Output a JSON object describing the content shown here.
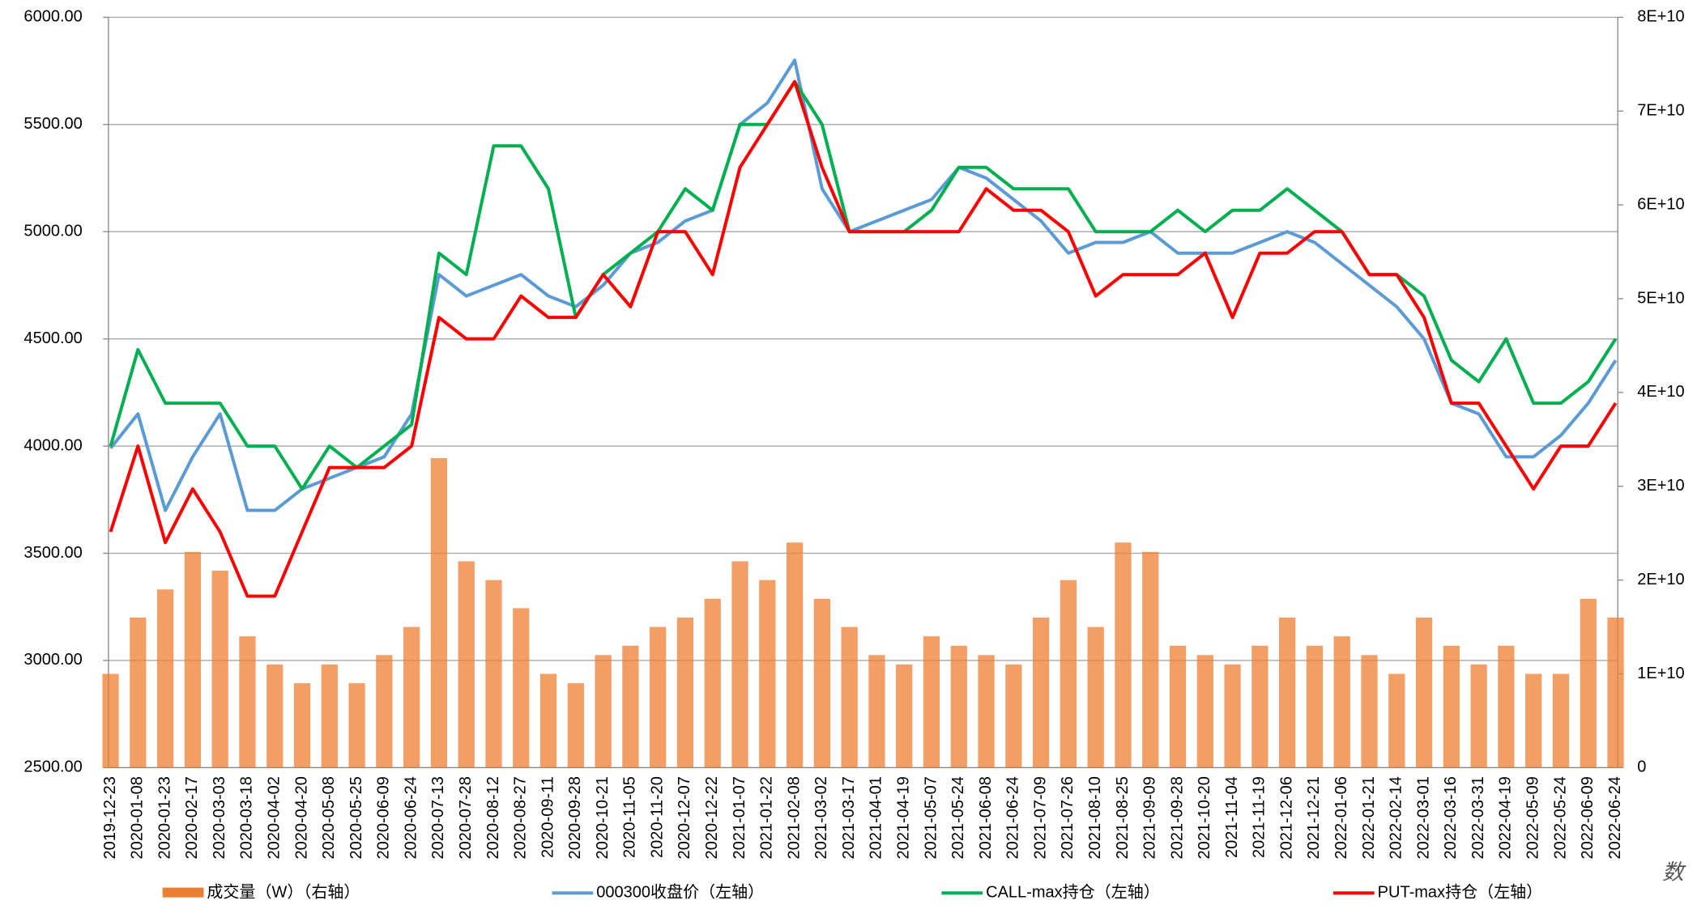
{
  "chart_data": {
    "type": "bar-line",
    "categories": [
      "2019-12-23",
      "2020-01-08",
      "2020-01-23",
      "2020-02-17",
      "2020-03-03",
      "2020-03-18",
      "2020-04-02",
      "2020-04-20",
      "2020-05-08",
      "2020-05-25",
      "2020-06-09",
      "2020-06-24",
      "2020-07-13",
      "2020-07-28",
      "2020-08-12",
      "2020-08-27",
      "2020-09-11",
      "2020-09-28",
      "2020-10-21",
      "2020-11-05",
      "2020-11-20",
      "2020-12-07",
      "2020-12-22",
      "2021-01-07",
      "2021-01-22",
      "2021-02-08",
      "2021-03-02",
      "2021-03-17",
      "2021-04-01",
      "2021-04-19",
      "2021-05-07",
      "2021-05-24",
      "2021-06-08",
      "2021-06-24",
      "2021-07-09",
      "2021-07-26",
      "2021-08-10",
      "2021-08-25",
      "2021-09-09",
      "2021-09-28",
      "2021-10-20",
      "2021-11-04",
      "2021-11-19",
      "2021-12-06",
      "2021-12-21",
      "2022-01-06",
      "2022-01-21",
      "2022-02-14",
      "2022-03-01",
      "2022-03-16",
      "2022-03-31",
      "2022-04-19",
      "2022-05-09",
      "2022-05-24",
      "2022-06-09",
      "2022-06-24"
    ],
    "series": [
      {
        "name": "成交量（W）（右轴）",
        "color": "#ED7D31",
        "axis": "y2",
        "kind": "bar",
        "values": [
          10000000000.0,
          16000000000.0,
          19000000000.0,
          23000000000.0,
          21000000000.0,
          14000000000.0,
          11000000000.0,
          9000000000.0,
          11000000000.0,
          9000000000.0,
          12000000000.0,
          15000000000.0,
          33000000000.0,
          22000000000.0,
          20000000000.0,
          17000000000.0,
          10000000000.0,
          9000000000.0,
          12000000000.0,
          13000000000.0,
          15000000000.0,
          16000000000.0,
          18000000000.0,
          22000000000.0,
          20000000000.0,
          24000000000.0,
          18000000000.0,
          15000000000.0,
          12000000000.0,
          11000000000.0,
          14000000000.0,
          13000000000.0,
          12000000000.0,
          11000000000.0,
          16000000000.0,
          20000000000.0,
          15000000000.0,
          24000000000.0,
          23000000000.0,
          13000000000.0,
          12000000000.0,
          11000000000.0,
          13000000000.0,
          16000000000.0,
          13000000000.0,
          14000000000.0,
          12000000000.0,
          10000000000.0,
          16000000000.0,
          13000000000.0,
          11000000000.0,
          13000000000.0,
          10000000000.0,
          10000000000.0,
          18000000000.0,
          16000000000.0
        ]
      },
      {
        "name": "000300收盘价（左轴）",
        "color": "#5B9BD5",
        "kind": "line",
        "values": [
          3990,
          4150,
          3700,
          3950,
          4150,
          3700,
          3700,
          3800,
          3850,
          3900,
          3950,
          4150,
          4800,
          4700,
          4750,
          4800,
          4700,
          4650,
          4750,
          4900,
          4950,
          5050,
          5100,
          5500,
          5600,
          5800,
          5200,
          5000,
          5050,
          5100,
          5150,
          5300,
          5250,
          5150,
          5050,
          4900,
          4950,
          4950,
          5000,
          4900,
          4900,
          4900,
          4950,
          5000,
          4950,
          4850,
          4750,
          4650,
          4500,
          4200,
          4150,
          3950,
          3950,
          4050,
          4200,
          4400
        ]
      },
      {
        "name": "CALL-max持仓（左轴）",
        "color": "#00B050",
        "kind": "line",
        "values": [
          4000,
          4450,
          4200,
          4200,
          4200,
          4000,
          4000,
          3800,
          4000,
          3900,
          4000,
          4100,
          4900,
          4800,
          5400,
          5400,
          5200,
          4600,
          4800,
          4900,
          5000,
          5200,
          5100,
          5500,
          5500,
          5700,
          5500,
          5000,
          5000,
          5000,
          5100,
          5300,
          5300,
          5200,
          5200,
          5200,
          5000,
          5000,
          5000,
          5100,
          5000,
          5100,
          5100,
          5200,
          5100,
          5000,
          4800,
          4800,
          4700,
          4400,
          4300,
          4500,
          4200,
          4200,
          4300,
          4500
        ]
      },
      {
        "name": "PUT-max持仓（左轴）",
        "color": "#FF0000",
        "kind": "line",
        "values": [
          3600,
          4000,
          3550,
          3800,
          3600,
          3300,
          3300,
          3600,
          3900,
          3900,
          3900,
          4000,
          4600,
          4500,
          4500,
          4700,
          4600,
          4600,
          4800,
          4650,
          5000,
          5000,
          4800,
          5300,
          5500,
          5700,
          5300,
          5000,
          5000,
          5000,
          5000,
          5000,
          5200,
          5100,
          5100,
          5000,
          4700,
          4800,
          4800,
          4800,
          4900,
          4600,
          4900,
          4900,
          5000,
          5000,
          4800,
          4800,
          4600,
          4200,
          4200,
          4000,
          3800,
          4000,
          4000,
          4200
        ]
      }
    ],
    "ylim": [
      2500,
      6000
    ],
    "yticks": [
      {
        "value": 2500,
        "label": "2500.00"
      },
      {
        "value": 3000,
        "label": "3000.00"
      },
      {
        "value": 3500,
        "label": "3500.00"
      },
      {
        "value": 4000,
        "label": "4000.00"
      },
      {
        "value": 4500,
        "label": "4500.00"
      },
      {
        "value": 5000,
        "label": "5000.00"
      },
      {
        "value": 5500,
        "label": "5500.00"
      },
      {
        "value": 6000,
        "label": "6000.00"
      }
    ],
    "y2lim": [
      0,
      80000000000.0
    ],
    "y2ticks": [
      0,
      {
        "value": 10000000000.0,
        "label": "1E+10"
      },
      {
        "value": 20000000000.0,
        "label": "2E+10"
      },
      {
        "value": 30000000000.0,
        "label": "3E+10"
      },
      {
        "value": 40000000000.0,
        "label": "4E+10"
      },
      {
        "value": 50000000000.0,
        "label": "5E+10"
      },
      {
        "value": 60000000000.0,
        "label": "6E+10"
      },
      {
        "value": 70000000000.0,
        "label": "7E+10"
      },
      {
        "value": 80000000000.0,
        "label": "8E+10"
      }
    ],
    "grid": true,
    "legend": "bottom",
    "annotation": "数"
  }
}
